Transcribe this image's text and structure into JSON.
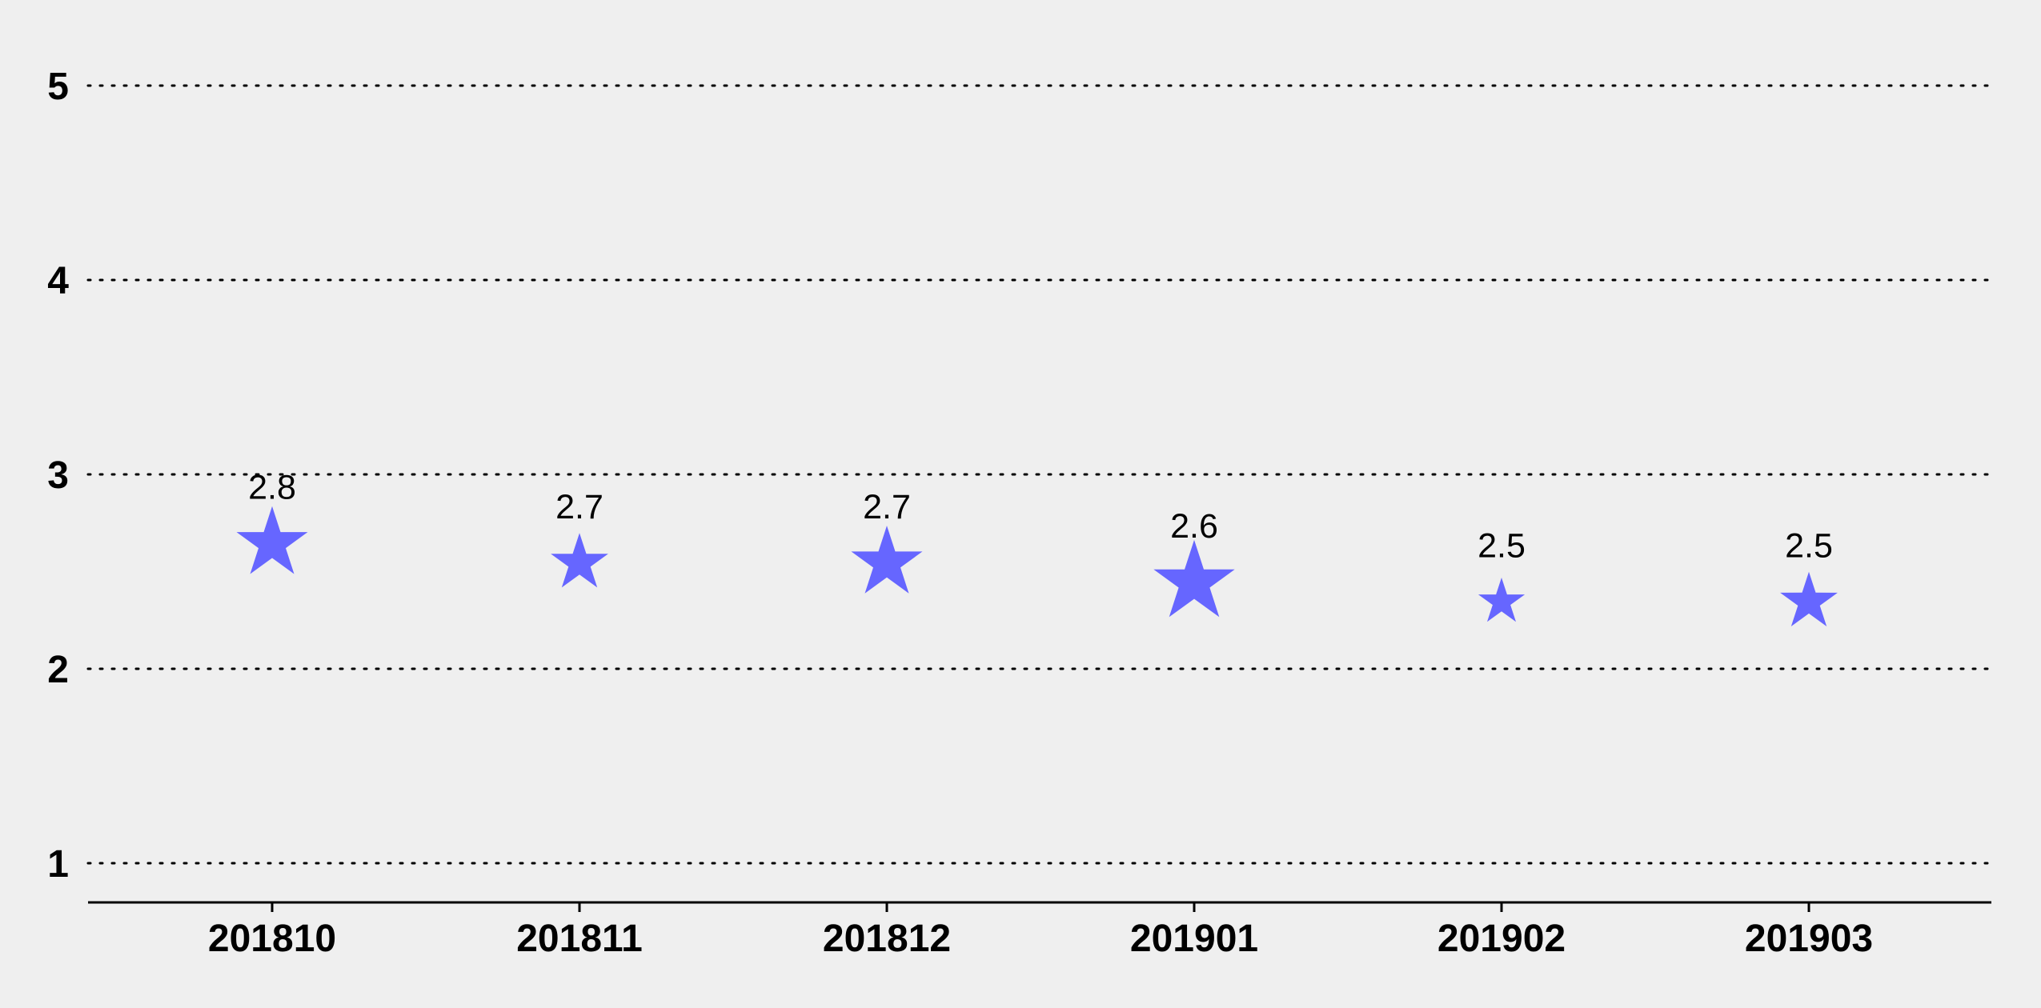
{
  "chart_data": {
    "type": "scatter",
    "marker": "star",
    "marker_color": "#6666ff",
    "background": "#efefef",
    "categories": [
      "201810",
      "201811",
      "201812",
      "201901",
      "201902",
      "201903"
    ],
    "series": [
      {
        "values": [
          2.8,
          2.7,
          2.7,
          2.6,
          2.5,
          2.5
        ],
        "data_labels": [
          "2.8",
          "2.7",
          "2.7",
          "2.6",
          "2.5",
          "2.5"
        ],
        "marker_sizes": [
          3,
          2,
          3,
          4,
          1,
          2
        ]
      }
    ],
    "yticks": [
      {
        "value": 1,
        "label": "1"
      },
      {
        "value": 2,
        "label": "2"
      },
      {
        "value": 3,
        "label": "3"
      },
      {
        "value": 4,
        "label": "4"
      },
      {
        "value": 5,
        "label": "5"
      }
    ],
    "ylim": [
      0.8,
      5.0
    ],
    "grid": true,
    "grid_style": "dotted",
    "title": "",
    "xlabel": "",
    "ylabel": ""
  }
}
